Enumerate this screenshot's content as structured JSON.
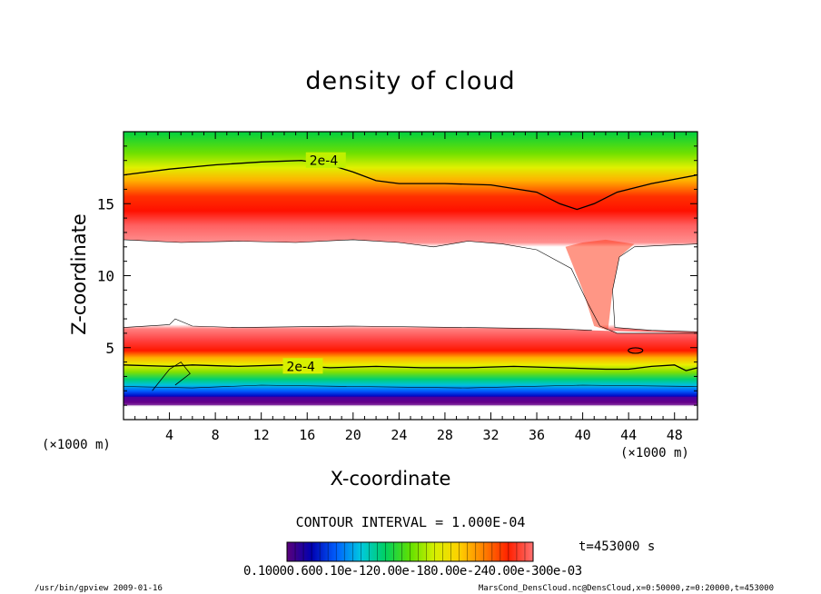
{
  "chart_data": {
    "type": "heatmap",
    "title": "density of cloud",
    "xlabel": "X-coordinate",
    "ylabel": "Z-coordinate",
    "x_unit_left": "(×1000 m)",
    "x_unit_right": "(×1000 m)",
    "xlim": [
      0,
      50
    ],
    "ylim": [
      0,
      20
    ],
    "xticks": [
      4,
      8,
      12,
      16,
      20,
      24,
      28,
      32,
      36,
      40,
      44,
      48
    ],
    "yticks": [
      5,
      10,
      15
    ],
    "contour_labels": [
      "2e-4",
      "2e-4"
    ],
    "upper_contour": [
      [
        0,
        17.0
      ],
      [
        4,
        17.4
      ],
      [
        8,
        17.7
      ],
      [
        12,
        17.9
      ],
      [
        15.5,
        18.0
      ],
      [
        18,
        17.7
      ],
      [
        20,
        17.2
      ],
      [
        22,
        16.6
      ],
      [
        24,
        16.4
      ],
      [
        28,
        16.4
      ],
      [
        32,
        16.3
      ],
      [
        36,
        15.8
      ],
      [
        38,
        15.0
      ],
      [
        39.5,
        14.6
      ],
      [
        41,
        15.0
      ],
      [
        43,
        15.8
      ],
      [
        46,
        16.4
      ],
      [
        50,
        17.0
      ]
    ],
    "upper_cloud_bottom": [
      [
        0,
        12.5
      ],
      [
        5,
        12.3
      ],
      [
        10,
        12.4
      ],
      [
        15,
        12.3
      ],
      [
        20,
        12.5
      ],
      [
        24,
        12.3
      ],
      [
        27,
        12.0
      ],
      [
        30,
        12.4
      ],
      [
        33,
        12.2
      ],
      [
        36,
        11.8
      ],
      [
        39,
        10.5
      ],
      [
        40.5,
        8.0
      ],
      [
        41.5,
        6.5
      ],
      [
        43,
        6.0
      ],
      [
        50,
        6.0
      ]
    ],
    "lower_cloud_top": [
      [
        0,
        6.4
      ],
      [
        4,
        6.6
      ],
      [
        4.5,
        7.0
      ],
      [
        6,
        6.5
      ],
      [
        10,
        6.4
      ],
      [
        20,
        6.5
      ],
      [
        30,
        6.4
      ],
      [
        38,
        6.3
      ],
      [
        40.8,
        6.2
      ]
    ],
    "right_hole": [
      [
        42.8,
        6.4
      ],
      [
        42.6,
        9.0
      ],
      [
        43.2,
        11.3
      ],
      [
        44.5,
        12.0
      ],
      [
        47,
        12.1
      ],
      [
        50,
        12.2
      ],
      [
        50,
        6.1
      ],
      [
        46,
        6.2
      ]
    ],
    "lower_contour": [
      [
        0,
        3.8
      ],
      [
        4,
        3.7
      ],
      [
        6,
        3.8
      ],
      [
        10,
        3.7
      ],
      [
        14,
        3.8
      ],
      [
        18,
        3.6
      ],
      [
        22,
        3.7
      ],
      [
        26,
        3.6
      ],
      [
        30,
        3.6
      ],
      [
        34,
        3.7
      ],
      [
        38,
        3.6
      ],
      [
        42,
        3.5
      ],
      [
        44,
        3.5
      ],
      [
        46,
        3.7
      ],
      [
        48,
        3.8
      ],
      [
        49,
        3.4
      ],
      [
        50,
        3.6
      ]
    ],
    "colorbar_levels": [
      "0.10000e-6",
      "0.60000e-4",
      "0.12000e-3",
      "0.18000e-3",
      "0.24000e-3",
      "0.30000e-3"
    ],
    "colorbar_text": "0.10000.600.10e-120.00e-180.00e-240.00e-300e-03",
    "contour_interval": "CONTOUR INTERVAL = 1.000E-04",
    "time": "t=453000 s",
    "palette": [
      "#5a007a",
      "#0000b0",
      "#0060ff",
      "#00c8e0",
      "#00d060",
      "#60e000",
      "#d8f000",
      "#ffd000",
      "#ff8000",
      "#ff2000",
      "#ff7070"
    ]
  },
  "footer": {
    "left": "/usr/bin/gpview   2009-01-16",
    "right": "MarsCond_DensCloud.nc@DensCloud,x=0:50000,z=0:20000,t=453000"
  }
}
